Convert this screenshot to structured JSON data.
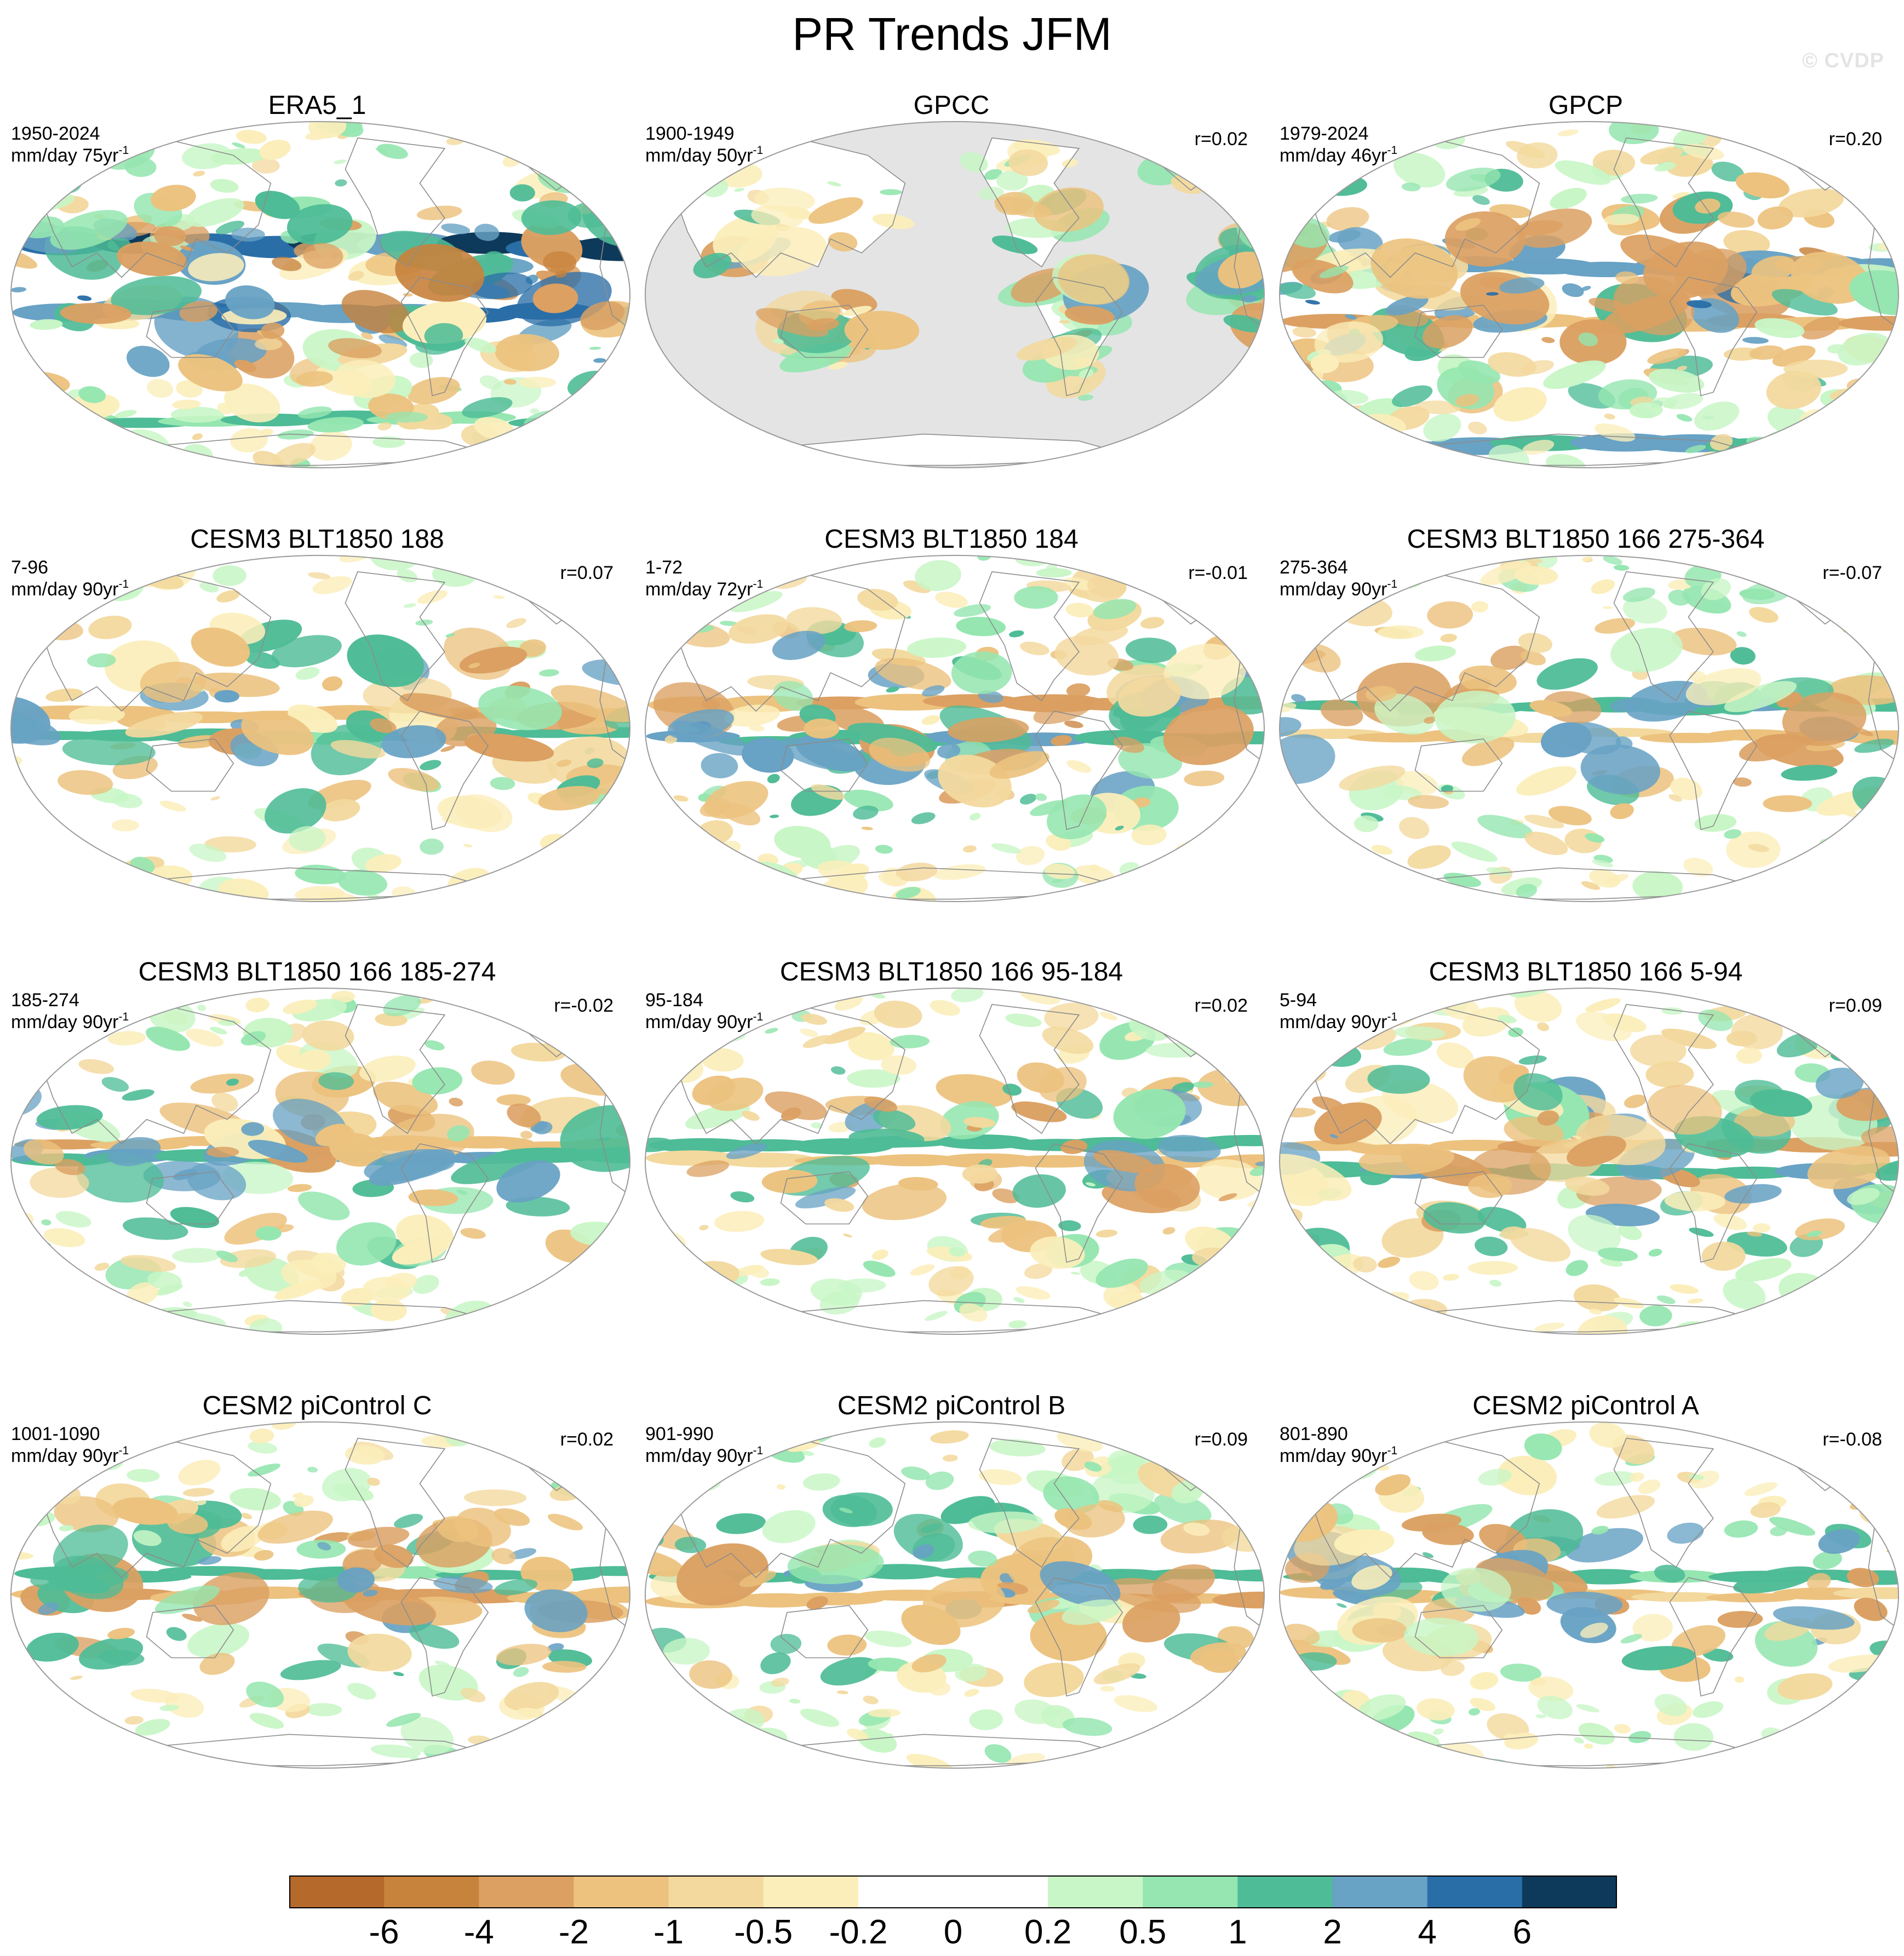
{
  "title": "PR Trends JFM",
  "watermark": "© CVDP",
  "colors": {
    "ocean_gray": "#e4e4e4",
    "coast": "#8c8c8c",
    "border": "#9a9a9a",
    "scale": [
      "#b5692a",
      "#c7823c",
      "#dba062",
      "#ecc27e",
      "#f3d99e",
      "#fbeeba",
      "#ffffff",
      "#ffffff",
      "#c8f6c6",
      "#95e6b0",
      "#4ebc96",
      "#68a2c4",
      "#2a6ea8",
      "#0d3a5a"
    ]
  },
  "panels": [
    {
      "title": "ERA5_1",
      "years": "1950-2024",
      "units": "mm/day 75yr",
      "unit_exp": "-1",
      "r": "",
      "type": "reanalysis",
      "coverage": 0.62,
      "intensity": 1.35,
      "seed": 11,
      "bands": [
        {
          "lat": 0.36,
          "amp": 6.5
        },
        {
          "lat": 0.55,
          "amp": 4.5
        },
        {
          "lat": 0.86,
          "amp": 1.5
        }
      ]
    },
    {
      "title": "GPCC",
      "years": "1900-1949",
      "units": "mm/day 50yr",
      "unit_exp": "-1",
      "r": "r=0.02",
      "type": "land",
      "coverage": 0.35,
      "intensity": 0.8,
      "seed": 23,
      "bands": []
    },
    {
      "title": "GPCP",
      "years": "1979-2024",
      "units": "mm/day 46yr",
      "unit_exp": "-1",
      "r": "r=0.20",
      "type": "satellite",
      "coverage": 0.66,
      "intensity": 1.3,
      "seed": 37,
      "bands": [
        {
          "lat": 0.42,
          "amp": 3.5
        },
        {
          "lat": 0.58,
          "amp": -2.5
        },
        {
          "lat": 0.93,
          "amp": 3.0
        }
      ]
    },
    {
      "title": "CESM3 BLT1850 188",
      "years": "7-96",
      "units": "mm/day 90yr",
      "unit_exp": "-1",
      "r": "r=0.07",
      "type": "model",
      "coverage": 0.48,
      "intensity": 0.95,
      "seed": 41,
      "bands": [
        {
          "lat": 0.46,
          "amp": -1.8
        },
        {
          "lat": 0.52,
          "amp": 1.5
        }
      ]
    },
    {
      "title": "CESM3 BLT1850 184",
      "years": "1-72",
      "units": "mm/day 72yr",
      "unit_exp": "-1",
      "r": "r=-0.01",
      "type": "model",
      "coverage": 0.55,
      "intensity": 1.2,
      "seed": 53,
      "bands": [
        {
          "lat": 0.43,
          "amp": -3.2
        },
        {
          "lat": 0.53,
          "amp": 2.2
        }
      ]
    },
    {
      "title": "CESM3 BLT1850 166 275-364",
      "years": "275-364",
      "units": "mm/day 90yr",
      "unit_exp": "-1",
      "r": "r=-0.07",
      "type": "model",
      "coverage": 0.5,
      "intensity": 1.05,
      "seed": 67,
      "bands": [
        {
          "lat": 0.44,
          "amp": 2.0
        },
        {
          "lat": 0.52,
          "amp": -1.5
        }
      ]
    },
    {
      "title": "CESM3 BLT1850 166 185-274",
      "years": "185-274",
      "units": "mm/day 90yr",
      "unit_exp": "-1",
      "r": "r=-0.02",
      "type": "model",
      "coverage": 0.5,
      "intensity": 1.0,
      "seed": 79,
      "bands": [
        {
          "lat": 0.45,
          "amp": -2.0
        },
        {
          "lat": 0.49,
          "amp": 2.0
        }
      ]
    },
    {
      "title": "CESM3 BLT1850 166 95-184",
      "years": "95-184",
      "units": "mm/day 90yr",
      "unit_exp": "-1",
      "r": "r=0.02",
      "type": "model",
      "coverage": 0.5,
      "intensity": 1.0,
      "seed": 83,
      "bands": [
        {
          "lat": 0.45,
          "amp": 2.0
        },
        {
          "lat": 0.5,
          "amp": -1.8
        }
      ]
    },
    {
      "title": "CESM3 BLT1850 166 5-94",
      "years": "5-94",
      "units": "mm/day 90yr",
      "unit_exp": "-1",
      "r": "r=0.09",
      "type": "model",
      "coverage": 0.52,
      "intensity": 1.1,
      "seed": 97,
      "bands": [
        {
          "lat": 0.46,
          "amp": -2.2
        },
        {
          "lat": 0.53,
          "amp": 2.4
        }
      ]
    },
    {
      "title": "CESM2 piControl C",
      "years": "1001-1090",
      "units": "mm/day 90yr",
      "unit_exp": "-1",
      "r": "r=0.02",
      "type": "model",
      "coverage": 0.5,
      "intensity": 1.0,
      "seed": 101,
      "bands": [
        {
          "lat": 0.44,
          "amp": 1.8
        },
        {
          "lat": 0.5,
          "amp": -2.4
        }
      ]
    },
    {
      "title": "CESM2 piControl B",
      "years": "901-990",
      "units": "mm/day 90yr",
      "unit_exp": "-1",
      "r": "r=0.09",
      "type": "model",
      "coverage": 0.5,
      "intensity": 1.0,
      "seed": 113,
      "bands": [
        {
          "lat": 0.44,
          "amp": 2.0
        },
        {
          "lat": 0.51,
          "amp": -2.2
        }
      ]
    },
    {
      "title": "CESM2 piControl A",
      "years": "801-890",
      "units": "mm/day 90yr",
      "unit_exp": "-1",
      "r": "r=-0.08",
      "type": "model",
      "coverage": 0.48,
      "intensity": 0.95,
      "seed": 127,
      "bands": [
        {
          "lat": 0.45,
          "amp": 1.8
        },
        {
          "lat": 0.5,
          "amp": -1.6
        }
      ]
    }
  ],
  "colorbar": {
    "boundaries": [
      "-6",
      "-4",
      "-2",
      "-1",
      "-0.5",
      "-0.2",
      "0",
      "0.2",
      "0.5",
      "1",
      "2",
      "4",
      "6"
    ],
    "levels": [
      -6,
      -4,
      -2,
      -1,
      -0.5,
      -0.2,
      0,
      0.2,
      0.5,
      1,
      2,
      4,
      6
    ]
  }
}
